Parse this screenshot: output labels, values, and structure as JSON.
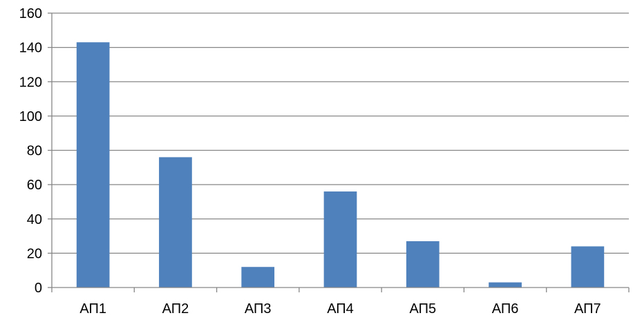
{
  "chart_data": {
    "type": "bar",
    "title": "",
    "xlabel": "",
    "ylabel": "",
    "categories": [
      "АП1",
      "АП2",
      "АП3",
      "АП4",
      "АП5",
      "АП6",
      "АП7"
    ],
    "series": [
      {
        "values": [
          143,
          76,
          12,
          56,
          27,
          3,
          24
        ]
      }
    ],
    "ylim": [
      0,
      160
    ],
    "yticks": [
      "0",
      "20",
      "40",
      "60",
      "80",
      "100",
      "120",
      "140",
      "160"
    ],
    "grid": true,
    "legend": "none",
    "colors": {
      "bar": "#4f81bd",
      "grid": "#868686",
      "axis": "#868686"
    }
  }
}
